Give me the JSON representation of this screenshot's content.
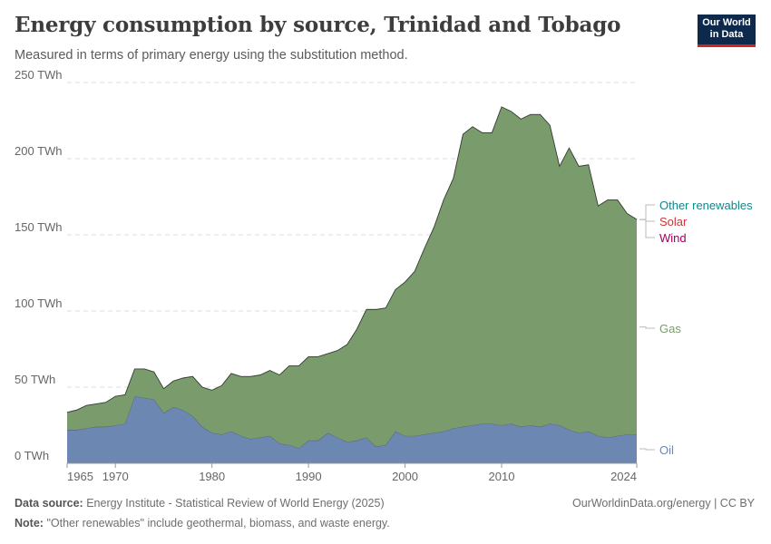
{
  "header": {
    "title": "Energy consumption by source, Trinidad and Tobago",
    "subtitle": "Measured in terms of primary energy using the substitution method."
  },
  "logo": {
    "line1": "Our World",
    "line2": "in Data"
  },
  "footer": {
    "source_label": "Data source:",
    "source_text": "Energy Institute - Statistical Review of World Energy (2025)",
    "note_label": "Note:",
    "note_text": "\"Other renewables\" include geothermal, biomass, and waste energy.",
    "credit": "OurWorldinData.org/energy | CC BY"
  },
  "colors": {
    "Oil": "#6d87b3",
    "Gas": "#7a9b6b",
    "Wind": "#a2005a",
    "Solar": "#c8343a",
    "Other renewables": "#16858a"
  },
  "chart_data": {
    "type": "area",
    "title": "Energy consumption by source, Trinidad and Tobago",
    "ylim": [
      0,
      250
    ],
    "yticks": [
      0,
      50,
      100,
      150,
      200,
      250
    ],
    "ytick_labels": [
      "0 TWh",
      "50 TWh",
      "100 TWh",
      "150 TWh",
      "200 TWh",
      "250 TWh"
    ],
    "xticks": [
      1965,
      1970,
      1980,
      1990,
      2000,
      2010,
      2024
    ],
    "xlim": [
      1965,
      2024
    ],
    "grid": true,
    "legend_position": "right",
    "x": [
      1965,
      1966,
      1967,
      1968,
      1969,
      1970,
      1971,
      1972,
      1973,
      1974,
      1975,
      1976,
      1977,
      1978,
      1979,
      1980,
      1981,
      1982,
      1983,
      1984,
      1985,
      1986,
      1987,
      1988,
      1989,
      1990,
      1991,
      1992,
      1993,
      1994,
      1995,
      1996,
      1997,
      1998,
      1999,
      2000,
      2001,
      2002,
      2003,
      2004,
      2005,
      2006,
      2007,
      2008,
      2009,
      2010,
      2011,
      2012,
      2013,
      2014,
      2015,
      2016,
      2017,
      2018,
      2019,
      2020,
      2021,
      2022,
      2023,
      2024
    ],
    "series": [
      {
        "name": "Oil",
        "values": [
          22,
          22,
          23,
          24,
          24,
          25,
          26,
          44,
          43,
          42,
          33,
          37,
          35,
          31,
          24,
          20,
          19,
          21,
          18,
          16,
          17,
          18,
          13,
          12,
          10,
          15,
          15,
          20,
          17,
          14,
          15,
          17,
          11,
          12,
          21,
          18,
          18,
          19,
          20,
          21,
          23,
          24,
          25,
          26,
          26,
          25,
          26,
          24,
          25,
          24,
          26,
          25,
          22,
          20,
          21,
          18,
          17,
          18,
          19,
          19
        ]
      },
      {
        "name": "Gas",
        "values": [
          11.5,
          13,
          15,
          15,
          16,
          19,
          19,
          18,
          19,
          18,
          16,
          17,
          21,
          26,
          26,
          28,
          32,
          38,
          39,
          41,
          41,
          43,
          45,
          52,
          54,
          55,
          55,
          52,
          57,
          64,
          73,
          84,
          90,
          90,
          93,
          101,
          108,
          122,
          135,
          152,
          164,
          192,
          196,
          191,
          191,
          209,
          205,
          202,
          204,
          205,
          196,
          170,
          185,
          175,
          175,
          151,
          156,
          155,
          145,
          141
        ]
      },
      {
        "name": "Wind",
        "values": [
          0,
          0,
          0,
          0,
          0,
          0,
          0,
          0,
          0,
          0,
          0,
          0,
          0,
          0,
          0,
          0,
          0,
          0,
          0,
          0,
          0,
          0,
          0,
          0,
          0,
          0,
          0,
          0,
          0,
          0,
          0,
          0,
          0,
          0,
          0,
          0,
          0,
          0,
          0,
          0,
          0,
          0,
          0,
          0,
          0,
          0,
          0,
          0,
          0,
          0,
          0,
          0,
          0,
          0,
          0,
          0,
          0,
          0,
          0,
          0
        ]
      },
      {
        "name": "Solar",
        "values": [
          0,
          0,
          0,
          0,
          0,
          0,
          0,
          0,
          0,
          0,
          0,
          0,
          0,
          0,
          0,
          0,
          0,
          0,
          0,
          0,
          0,
          0,
          0,
          0,
          0,
          0,
          0,
          0,
          0,
          0,
          0,
          0,
          0,
          0,
          0,
          0,
          0,
          0,
          0,
          0,
          0,
          0,
          0,
          0,
          0,
          0,
          0,
          0,
          0,
          0,
          0,
          0,
          0,
          0,
          0,
          0,
          0,
          0,
          0,
          0.1
        ]
      },
      {
        "name": "Other renewables",
        "values": [
          0,
          0,
          0,
          0,
          0,
          0,
          0,
          0,
          0,
          0,
          0,
          0,
          0,
          0,
          0,
          0,
          0,
          0,
          0,
          0,
          0,
          0,
          0,
          0,
          0,
          0,
          0,
          0,
          0,
          0,
          0,
          0,
          0,
          0,
          0,
          0,
          0,
          0,
          0,
          0,
          0,
          0,
          0,
          0,
          0,
          0,
          0,
          0,
          0,
          0,
          0,
          0,
          0,
          0,
          0,
          0,
          0,
          0,
          0,
          0.1
        ]
      }
    ]
  }
}
